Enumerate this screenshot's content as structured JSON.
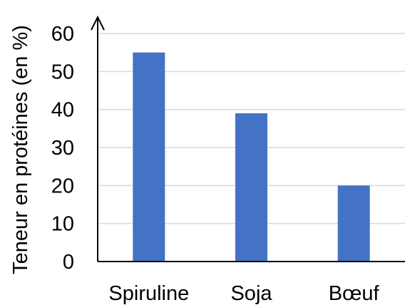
{
  "chart_data": {
    "type": "bar",
    "categories": [
      "Spiruline",
      "Soja",
      "Bœuf"
    ],
    "values": [
      55,
      39,
      20
    ],
    "ylabel": "Teneur en protéines (en %)",
    "xlabel": "",
    "ylim": [
      0,
      60
    ],
    "yticks": [
      0,
      10,
      20,
      30,
      40,
      50,
      60
    ],
    "grid": true,
    "bar_color": "#4472C4",
    "grid_color": "#d9d9d9",
    "axis_color": "#000000"
  }
}
